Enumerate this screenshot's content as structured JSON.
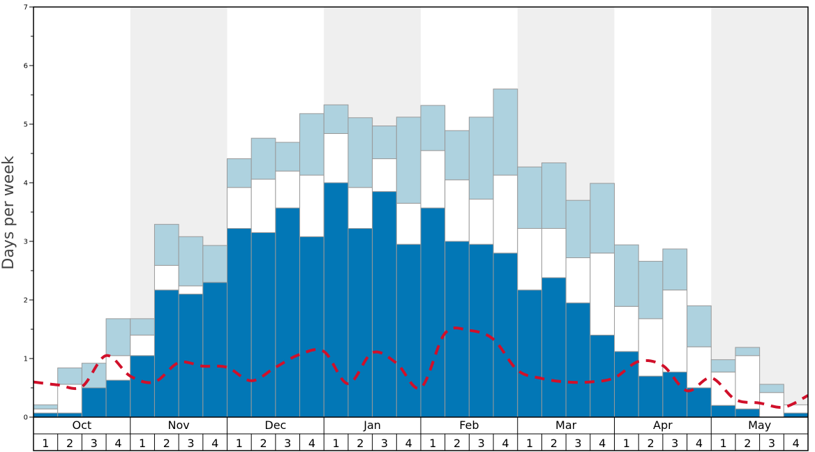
{
  "chart_data": {
    "type": "bar",
    "ylabel": "Days per week",
    "ylim": [
      0,
      7
    ],
    "yticks": [
      "0",
      "1",
      "2",
      "3",
      "4",
      "5",
      "6",
      "7"
    ],
    "months": [
      "Oct",
      "Nov",
      "Dec",
      "Jan",
      "Feb",
      "Mar",
      "Apr",
      "May"
    ],
    "weeks": [
      "1",
      "2",
      "3",
      "4"
    ],
    "shaded_months": [
      "Nov",
      "Jan",
      "Mar",
      "May"
    ],
    "stacked": true,
    "series": [
      {
        "values": [
          0.07,
          0.07,
          0.5,
          0.63,
          1.05,
          2.17,
          2.1,
          2.3,
          3.22,
          3.15,
          3.57,
          3.08,
          4.0,
          3.22,
          3.85,
          2.95,
          3.57,
          3.0,
          2.95,
          2.8,
          2.17,
          2.38,
          1.95,
          1.4,
          1.12,
          0.7,
          0.77,
          0.5,
          0.2,
          0.14,
          0.0,
          0.07
        ]
      },
      {
        "values": [
          0.07,
          0.49,
          0.0,
          0.42,
          0.35,
          0.42,
          0.14,
          0.0,
          0.7,
          0.91,
          0.63,
          1.05,
          0.84,
          0.7,
          0.56,
          0.7,
          0.98,
          1.05,
          0.77,
          1.33,
          1.05,
          0.84,
          0.77,
          1.4,
          0.77,
          0.98,
          1.4,
          0.7,
          0.57,
          0.91,
          0.42,
          0.14
        ]
      },
      {
        "values": [
          0.07,
          0.28,
          0.42,
          0.63,
          0.28,
          0.7,
          0.84,
          0.63,
          0.49,
          0.7,
          0.49,
          1.05,
          0.49,
          1.19,
          0.56,
          1.47,
          0.77,
          0.84,
          1.4,
          1.47,
          1.05,
          1.12,
          0.98,
          1.19,
          1.05,
          0.98,
          0.7,
          0.7,
          0.21,
          0.14,
          0.14,
          0.0
        ]
      }
    ],
    "line_series": {
      "values": [
        0.6,
        0.55,
        0.52,
        1.05,
        0.7,
        0.6,
        0.93,
        0.87,
        0.85,
        0.62,
        0.85,
        1.07,
        1.12,
        0.57,
        1.1,
        0.92,
        0.5,
        1.43,
        1.48,
        1.33,
        0.8,
        0.66,
        0.6,
        0.6,
        0.67,
        0.95,
        0.88,
        0.45,
        0.67,
        0.3,
        0.24,
        0.17,
        0.37
      ]
    },
    "colors": {
      "bottom": "#0277b6",
      "middle": "#ffffff",
      "top": "#aed2df",
      "line": "#d0102a",
      "shade": "#efefef",
      "bar_edge": "#999999"
    }
  }
}
